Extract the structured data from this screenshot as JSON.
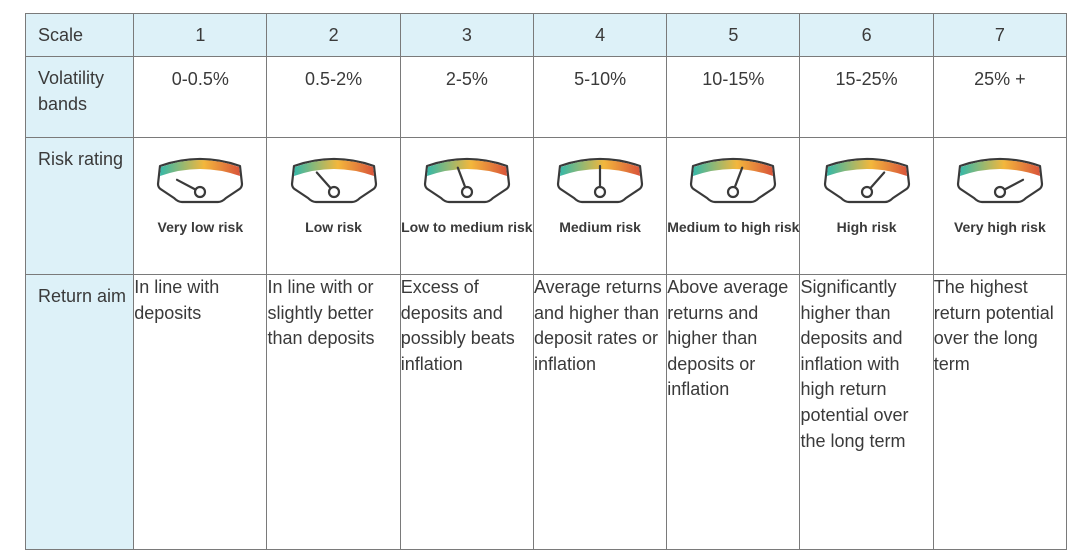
{
  "labels": {
    "scale": "Scale",
    "volatility_bands": "Volatility bands",
    "risk_rating": "Risk rating",
    "return_aim": "Return aim"
  },
  "columns": [
    {
      "scale": "1",
      "band": "0-0.5%",
      "rating": "Very low risk",
      "needle_level": 1,
      "return_aim": "In line with deposits"
    },
    {
      "scale": "2",
      "band": "0.5-2%",
      "rating": "Low risk",
      "needle_level": 2,
      "return_aim": "In line with or slightly better than deposits"
    },
    {
      "scale": "3",
      "band": "2-5%",
      "rating": "Low to medium risk",
      "needle_level": 3,
      "return_aim": "Excess of deposits and possibly beats inflation"
    },
    {
      "scale": "4",
      "band": "5-10%",
      "rating": "Medium risk",
      "needle_level": 4,
      "return_aim": "Average returns and higher than deposit rates or inflation"
    },
    {
      "scale": "5",
      "band": "10-15%",
      "rating": "Medium to high risk",
      "needle_level": 5,
      "return_aim": "Above average returns and higher than deposits or inflation"
    },
    {
      "scale": "6",
      "band": "15-25%",
      "rating": "High risk",
      "needle_level": 6,
      "return_aim": "Significantly higher than deposits and inflation with high return potential over the long term"
    },
    {
      "scale": "7",
      "band": "25% +",
      "rating": "Very high risk",
      "needle_level": 7,
      "return_aim": "The highest return potential over the long term"
    }
  ],
  "colors": {
    "header_bg": "#ddf1f8",
    "border": "#7a7a7a",
    "gauge_low": "#35b8a8",
    "gauge_mid": "#f3b73c",
    "gauge_high": "#d9543a"
  }
}
